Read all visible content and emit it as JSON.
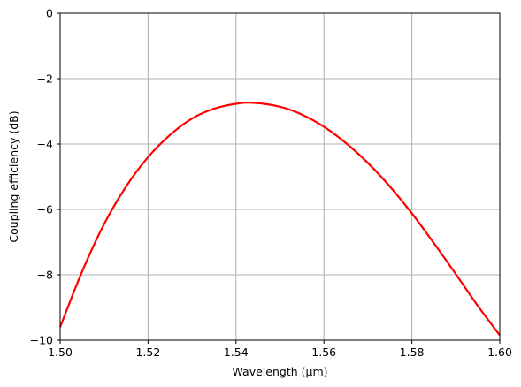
{
  "chart_data": {
    "type": "line",
    "title": "",
    "xlabel": "Wavelength (µm)",
    "ylabel": "Coupling efficiency (dB)",
    "xlim": [
      1.5,
      1.6
    ],
    "ylim": [
      -10,
      0
    ],
    "x_ticks": [
      1.5,
      1.52,
      1.54,
      1.56,
      1.58,
      1.6
    ],
    "x_tick_labels": [
      "1.50",
      "1.52",
      "1.54",
      "1.56",
      "1.58",
      "1.60"
    ],
    "y_ticks": [
      0,
      -2,
      -4,
      -6,
      -8,
      -10
    ],
    "y_tick_labels": [
      "0",
      "−2",
      "−4",
      "−6",
      "−8",
      "−10"
    ],
    "grid": true,
    "legend": "none",
    "series": [
      {
        "color": "#ff0000",
        "x": [
          1.5,
          1.505,
          1.51,
          1.515,
          1.52,
          1.525,
          1.53,
          1.535,
          1.54,
          1.544,
          1.55,
          1.555,
          1.56,
          1.565,
          1.57,
          1.575,
          1.58,
          1.585,
          1.59,
          1.595,
          1.6
        ],
        "y": [
          -9.6,
          -7.9,
          -6.45,
          -5.3,
          -4.4,
          -3.72,
          -3.22,
          -2.92,
          -2.77,
          -2.74,
          -2.86,
          -3.1,
          -3.47,
          -3.97,
          -4.58,
          -5.3,
          -6.12,
          -7.03,
          -7.98,
          -8.95,
          -9.85
        ]
      }
    ]
  }
}
